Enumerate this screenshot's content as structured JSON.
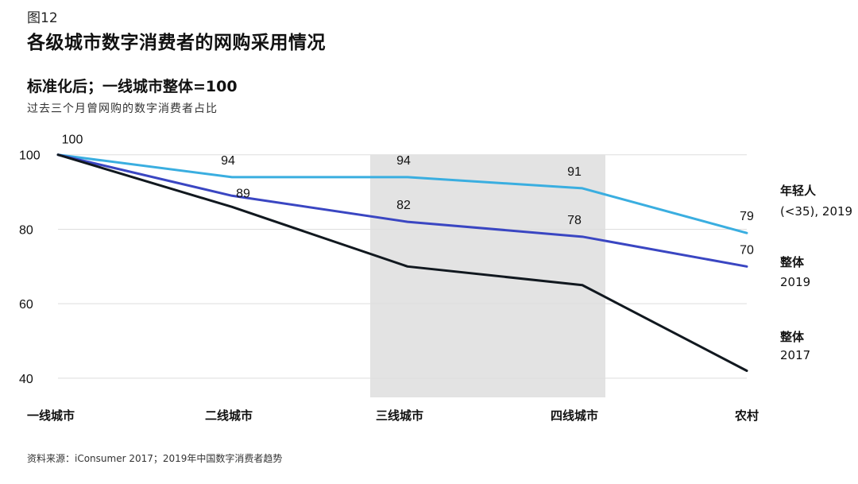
{
  "figure_label": "图12",
  "title": "各级城市数字消费者的网购采用情况",
  "subtitle": "标准化后；一线城市整体=100",
  "note": "过去三个月曾网购的数字消费者占比",
  "source": "资料来源：iConsumer 2017；2019年中国数字消费者趋势",
  "chart_data": {
    "type": "line",
    "categories": [
      "一线城市",
      "二线城市",
      "三线城市",
      "四线城市",
      "农村"
    ],
    "y_ticks": [
      40,
      60,
      80,
      100
    ],
    "ylim": [
      34,
      104
    ],
    "grid": true,
    "highlight_categories": [
      "三线城市",
      "四线城市"
    ],
    "highlight_color": "#e3e3e3",
    "series": [
      {
        "legend_line1": "年轻人",
        "legend_line2": "(<35), 2019",
        "color": "#3aaee0",
        "values": [
          100,
          94,
          94,
          91,
          79
        ],
        "labels": [
          "",
          "94",
          "94",
          "91",
          "79"
        ]
      },
      {
        "legend_line1": "整体",
        "legend_line2": "2019",
        "color": "#3a46c2",
        "values": [
          100,
          89,
          82,
          78,
          70
        ],
        "labels": [
          "",
          "89",
          "82",
          "78",
          "70"
        ]
      },
      {
        "legend_line1": "整体",
        "legend_line2": "2017",
        "color": "#11181f",
        "values": [
          100,
          86,
          70,
          65,
          42
        ],
        "labels": [
          "100",
          "",
          "",
          "",
          ""
        ]
      }
    ]
  }
}
